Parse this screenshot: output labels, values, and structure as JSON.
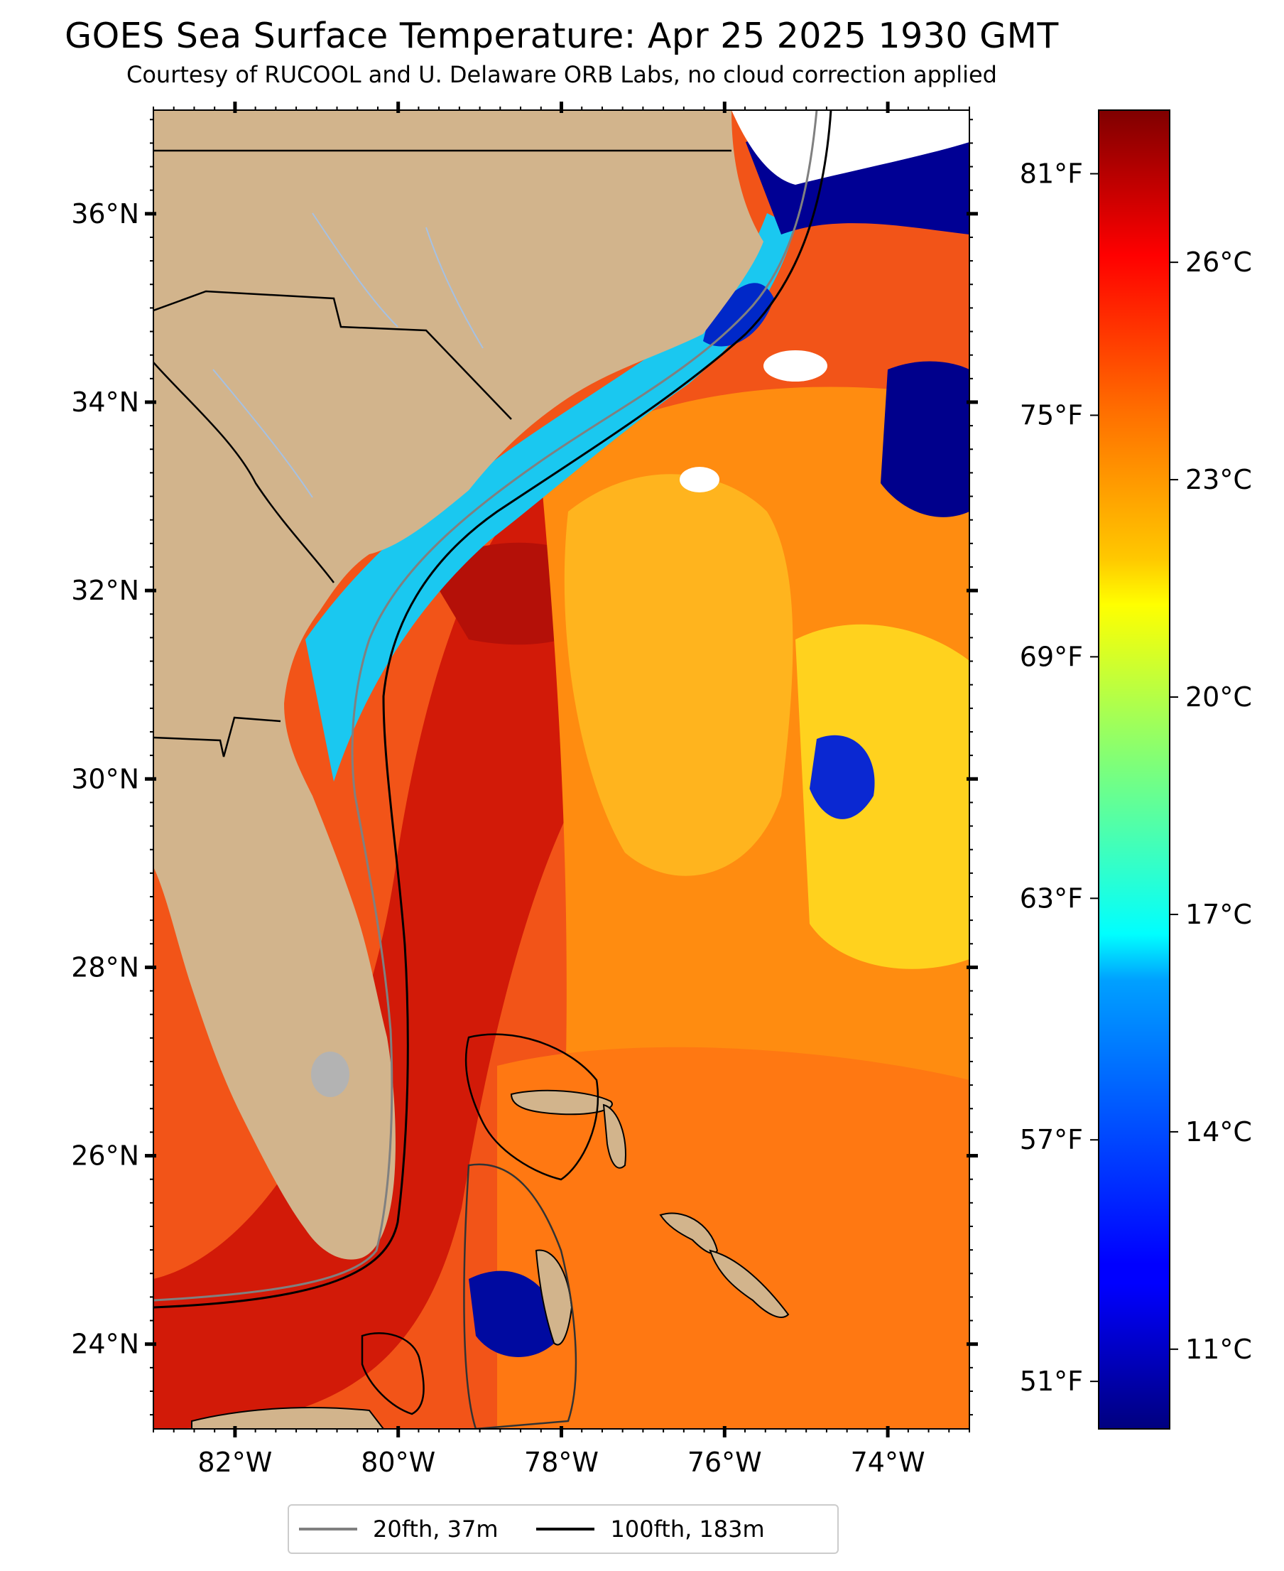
{
  "chart_data": {
    "type": "heatmap",
    "title": "GOES Sea Surface Temperature: Apr 25 2025 1930 GMT",
    "subtitle": "Courtesy of RUCOOL and U. Delaware ORB Labs, no cloud correction applied",
    "x_ticks": [
      "82°W",
      "80°W",
      "78°W",
      "76°W",
      "74°W"
    ],
    "x_tick_values": [
      -82,
      -80,
      -78,
      -76,
      -74
    ],
    "y_ticks": [
      "24°N",
      "26°N",
      "28°N",
      "30°N",
      "32°N",
      "34°N",
      "36°N"
    ],
    "y_tick_values": [
      24,
      26,
      28,
      30,
      32,
      34,
      36
    ],
    "x_range": [
      -83,
      -73
    ],
    "y_range": [
      23.1,
      37.1
    ],
    "right_axis_ticks_f": [
      "51°F",
      "57°F",
      "63°F",
      "69°F",
      "75°F",
      "81°F"
    ],
    "colorbar": {
      "colormap": "jet",
      "range_c": [
        9.9,
        28.1
      ],
      "ticks": [
        "11°C",
        "14°C",
        "17°C",
        "20°C",
        "23°C",
        "26°C"
      ],
      "tick_values": [
        11,
        14,
        17,
        20,
        23,
        26
      ]
    },
    "legend": [
      {
        "label": "20fth, 37m",
        "color": "#808080"
      },
      {
        "label": "100fth, 183m",
        "color": "#000000"
      }
    ],
    "colors": {
      "land": "#d2b48c",
      "cloud": "#ffffff",
      "lake": "#b3b3b3",
      "rivers": "#a6c1e3"
    }
  }
}
